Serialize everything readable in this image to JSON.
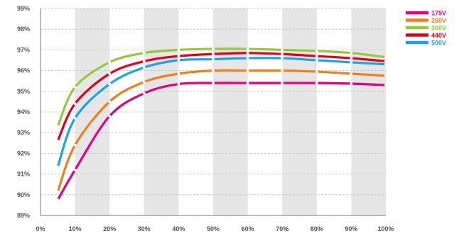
{
  "chart_data": {
    "type": "line",
    "title": "",
    "xlabel": "",
    "ylabel": "",
    "xlim": [
      0,
      100
    ],
    "ylim": [
      89,
      99
    ],
    "x_ticks": [
      "0%",
      "10%",
      "20%",
      "30%",
      "40%",
      "50%",
      "60%",
      "70%",
      "80%",
      "90%",
      "100%"
    ],
    "y_ticks": [
      "89%",
      "90%",
      "91%",
      "92%",
      "93%",
      "94%",
      "95%",
      "96%",
      "97%",
      "98%",
      "99%"
    ],
    "grid": true,
    "shaded_bands": [
      [
        10,
        20
      ],
      [
        30,
        40
      ],
      [
        50,
        60
      ],
      [
        70,
        80
      ],
      [
        90,
        100
      ]
    ],
    "legend_position": "top-right",
    "series": [
      {
        "name": "175V",
        "color": "#e5007e",
        "points": [
          [
            5,
            89.75
          ],
          [
            10,
            91.2
          ],
          [
            20,
            93.8
          ],
          [
            30,
            94.9
          ],
          [
            40,
            95.35
          ],
          [
            50,
            95.4
          ],
          [
            60,
            95.4
          ],
          [
            70,
            95.4
          ],
          [
            80,
            95.4
          ],
          [
            90,
            95.37
          ],
          [
            100,
            95.3
          ]
        ]
      },
      {
        "name": "250V",
        "color": "#f07f1b",
        "points": [
          [
            5,
            90.15
          ],
          [
            10,
            92.4
          ],
          [
            20,
            94.5
          ],
          [
            30,
            95.45
          ],
          [
            40,
            95.85
          ],
          [
            50,
            96.0
          ],
          [
            60,
            96.0
          ],
          [
            70,
            96.0
          ],
          [
            80,
            95.95
          ],
          [
            90,
            95.85
          ],
          [
            100,
            95.75
          ]
        ]
      },
      {
        "name": "360V",
        "color": "#94c83d",
        "points": [
          [
            5,
            93.3
          ],
          [
            10,
            95.2
          ],
          [
            20,
            96.4
          ],
          [
            30,
            96.85
          ],
          [
            40,
            97.0
          ],
          [
            50,
            97.05
          ],
          [
            60,
            97.05
          ],
          [
            70,
            97.0
          ],
          [
            80,
            96.95
          ],
          [
            90,
            96.85
          ],
          [
            100,
            96.65
          ]
        ]
      },
      {
        "name": "440V",
        "color": "#e3001b",
        "points": [
          [
            5,
            92.6
          ],
          [
            10,
            94.4
          ],
          [
            20,
            95.85
          ],
          [
            30,
            96.45
          ],
          [
            40,
            96.7
          ],
          [
            50,
            96.8
          ],
          [
            60,
            96.85
          ],
          [
            70,
            96.8
          ],
          [
            80,
            96.7
          ],
          [
            90,
            96.6
          ],
          [
            100,
            96.45
          ]
        ]
      },
      {
        "name": "500V",
        "color": "#1aa3e8",
        "points": [
          [
            5,
            91.35
          ],
          [
            10,
            93.7
          ],
          [
            20,
            95.35
          ],
          [
            30,
            96.15
          ],
          [
            40,
            96.5
          ],
          [
            50,
            96.55
          ],
          [
            60,
            96.6
          ],
          [
            70,
            96.6
          ],
          [
            80,
            96.5
          ],
          [
            90,
            96.4
          ],
          [
            100,
            96.3
          ]
        ]
      }
    ]
  }
}
